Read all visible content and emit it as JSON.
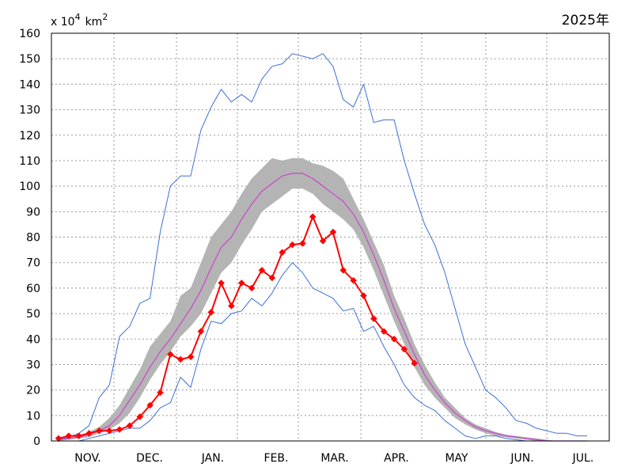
{
  "header": {
    "unit_prefix": "x 10",
    "unit_exp1": "4",
    "unit_km": "km",
    "unit_exp2": "2",
    "year": "2025年"
  },
  "chart_data": {
    "type": "line",
    "y_ticks": [
      0,
      10,
      20,
      30,
      40,
      50,
      60,
      70,
      80,
      90,
      100,
      110,
      120,
      130,
      140,
      150,
      160
    ],
    "ylim": [
      0,
      160
    ],
    "months": [
      "NOV.",
      "DEC.",
      "JAN.",
      "FEB.",
      "MAR.",
      "APR.",
      "MAY",
      "JUN.",
      "JUL."
    ],
    "grid": true,
    "colors": {
      "current": "#ff0000",
      "mean": "#cc44cc",
      "band": "#b4b4b4",
      "extremes": "#3b6fd6"
    },
    "series": [
      {
        "key": "max",
        "values": [
          0.5,
          1.5,
          3,
          6,
          17,
          22,
          41,
          45,
          54,
          56,
          82,
          100,
          104,
          104,
          122,
          131,
          138,
          133,
          136,
          133,
          142,
          147,
          148,
          152,
          151,
          150,
          152,
          147,
          134,
          131,
          140,
          125,
          126,
          126,
          110,
          97,
          85,
          77,
          66,
          52,
          38,
          29,
          20,
          17,
          13,
          8,
          7,
          5,
          4,
          3,
          3,
          2,
          2
        ]
      },
      {
        "key": "min",
        "values": [
          0,
          0,
          0,
          1,
          2,
          3,
          4,
          5,
          5,
          8,
          13,
          15,
          25,
          21,
          36,
          47,
          46,
          50,
          51,
          56,
          53,
          58,
          65,
          70,
          66,
          60,
          58,
          56,
          51,
          52,
          43,
          45,
          37,
          30,
          22,
          17,
          14,
          12,
          8,
          5,
          2,
          1,
          2,
          2,
          1,
          0.5,
          0,
          0,
          0,
          0,
          0,
          0,
          0
        ]
      },
      {
        "key": "mean",
        "values": [
          0.5,
          1,
          1.5,
          2.5,
          4,
          6,
          10,
          16,
          22,
          29,
          35,
          40,
          46,
          52,
          59,
          68,
          76,
          80,
          87,
          93,
          98,
          101,
          104,
          105,
          105,
          103,
          100,
          97,
          94,
          89,
          82,
          73,
          63,
          52,
          43,
          34,
          26,
          20,
          15,
          11,
          8,
          5.5,
          4,
          3,
          2,
          1.5,
          1,
          0.5,
          0,
          0,
          0,
          0,
          0
        ]
      },
      {
        "key": "band_upper",
        "values": [
          0.5,
          1.5,
          2,
          3.5,
          5.5,
          9,
          14,
          21,
          28,
          37,
          42,
          47,
          57,
          60,
          70,
          80,
          85,
          90,
          97,
          103,
          107,
          111,
          110,
          111,
          111,
          109,
          108,
          106,
          103,
          95,
          87,
          78,
          69,
          57,
          48,
          38,
          30,
          23,
          17,
          13,
          9,
          6.5,
          5,
          3.5,
          2.5,
          2,
          1.5,
          1,
          0.5,
          0,
          0,
          0,
          0
        ]
      },
      {
        "key": "band_lower",
        "values": [
          0,
          0.5,
          1,
          1.5,
          3,
          4.5,
          7,
          11,
          17,
          24,
          30,
          35,
          41,
          45,
          50,
          58,
          66,
          70,
          77,
          83,
          90,
          93,
          96,
          99,
          99,
          97,
          93,
          90,
          87,
          83,
          76,
          67,
          57,
          47,
          38,
          29,
          22,
          17,
          13,
          9,
          6.5,
          4.5,
          3,
          2,
          1.5,
          1,
          0.5,
          0,
          0,
          0,
          0,
          0,
          0
        ]
      },
      {
        "key": "current",
        "values": [
          1,
          2,
          2,
          3,
          4,
          4,
          4.5,
          6,
          9.5,
          14,
          19,
          34,
          32,
          33,
          43,
          50.5,
          62,
          53,
          62,
          60,
          67,
          64,
          74,
          77,
          77.5,
          88,
          78.5,
          82,
          67,
          63,
          57,
          48,
          43,
          40,
          36,
          30.5
        ]
      }
    ]
  }
}
